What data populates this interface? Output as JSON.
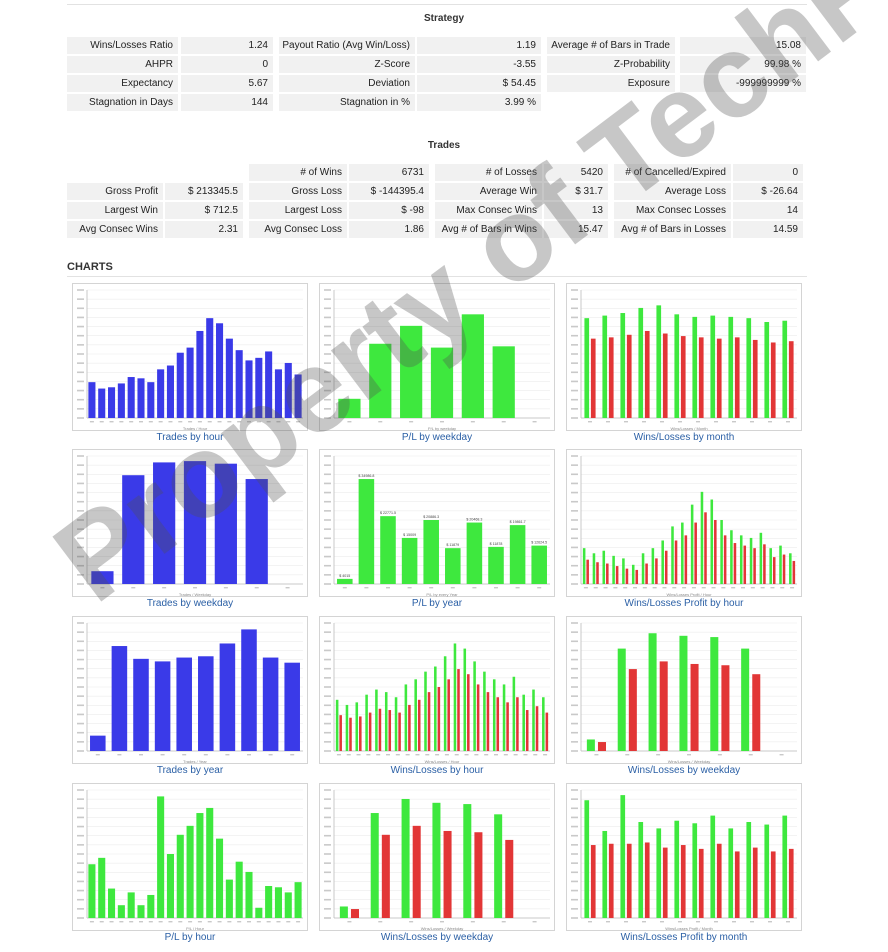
{
  "strategy": {
    "title": "Strategy",
    "rows": [
      [
        {
          "label": "Wins/Losses Ratio",
          "value": "1.24"
        },
        {
          "label": "Payout Ratio (Avg Win/Loss)",
          "value": "1.19"
        },
        {
          "label": "Average # of Bars in Trade",
          "value": "15.08"
        }
      ],
      [
        {
          "label": "AHPR",
          "value": "0"
        },
        {
          "label": "Z-Score",
          "value": "-3.55"
        },
        {
          "label": "Z-Probability",
          "value": "99.98 %"
        }
      ],
      [
        {
          "label": "Expectancy",
          "value": "5.67"
        },
        {
          "label": "Deviation",
          "value": "$ 54.45"
        },
        {
          "label": "Exposure",
          "value": "-999999999 %"
        }
      ],
      [
        {
          "label": "Stagnation in Days",
          "value": "144"
        },
        {
          "label": "Stagnation in %",
          "value": "3.99 %"
        }
      ]
    ]
  },
  "trades": {
    "title": "Trades",
    "first_row": [
      {
        "label": "# of Wins",
        "value": "6731"
      },
      {
        "label": "# of Losses",
        "value": "5420"
      },
      {
        "label": "# of Cancelled/Expired",
        "value": "0"
      }
    ],
    "rows": [
      [
        {
          "label": "Gross Profit",
          "value": "$ 213345.5"
        },
        {
          "label": "Gross Loss",
          "value": "$ -144395.4"
        },
        {
          "label": "Average Win",
          "value": "$ 31.7"
        },
        {
          "label": "Average Loss",
          "value": "$ -26.64"
        }
      ],
      [
        {
          "label": "Largest Win",
          "value": "$ 712.5"
        },
        {
          "label": "Largest Loss",
          "value": "$ -98"
        },
        {
          "label": "Max Consec Wins",
          "value": "13"
        },
        {
          "label": "Max Consec Losses",
          "value": "14"
        }
      ],
      [
        {
          "label": "Avg Consec Wins",
          "value": "2.31"
        },
        {
          "label": "Avg Consec Loss",
          "value": "1.86"
        },
        {
          "label": "Avg # of Bars in Wins",
          "value": "15.47"
        },
        {
          "label": "Avg # of Bars in Losses",
          "value": "14.59"
        }
      ]
    ]
  },
  "charts_heading": "CHARTS",
  "watermark": "Property of TechFXPRO.com",
  "colors": {
    "blue": "#3a3ae8",
    "green": "#3ee83e",
    "red": "#e23636",
    "caption": "#2a5fa5"
  },
  "chart_data": [
    {
      "type": "bar",
      "caption": "Trades by hour",
      "xlabel": "Trades / Hour",
      "color": "blue",
      "values": [
        28,
        23,
        24,
        27,
        32,
        31,
        28,
        38,
        41,
        51,
        55,
        68,
        78,
        74,
        62,
        53,
        45,
        47,
        52,
        38,
        43,
        34
      ]
    },
    {
      "type": "bar",
      "caption": "P/L by weekday",
      "xlabel": "P/L by weekday",
      "color": "green",
      "categories": [
        "Sun",
        "Mon",
        "Tue",
        "Wed",
        "Thu",
        "Fri",
        "Sat"
      ],
      "values": [
        15,
        58,
        72,
        55,
        81,
        56,
        0
      ]
    },
    {
      "type": "bar",
      "caption": "Wins/Losses by month",
      "xlabel": "Wins/Losses / Month",
      "series": [
        {
          "color": "green",
          "values": [
            78,
            80,
            82,
            86,
            88,
            81,
            79,
            80,
            79,
            78,
            75,
            76
          ]
        },
        {
          "color": "red",
          "values": [
            62,
            63,
            65,
            68,
            66,
            64,
            63,
            62,
            63,
            61,
            59,
            60
          ]
        }
      ]
    },
    {
      "type": "bar",
      "caption": "Trades by weekday",
      "xlabel": "Trades / Weekday",
      "color": "blue",
      "categories": [
        "Sun",
        "Mon",
        "Tue",
        "Wed",
        "Thu",
        "Fri",
        "Sat"
      ],
      "values": [
        10,
        85,
        95,
        96,
        94,
        82,
        0
      ]
    },
    {
      "type": "bar",
      "caption": "P/L by year",
      "xlabel": "P/L by every Year",
      "color": "green",
      "categories": [
        "2007",
        "2008",
        "2009",
        "2010",
        "2011",
        "2012",
        "2013",
        "2014",
        "2015",
        "2016"
      ],
      "values": [
        4,
        82,
        53,
        36,
        50,
        28,
        48,
        29,
        46,
        30
      ],
      "value_labels": [
        "$ 4015",
        "$ 34986.8",
        "$ 22771.5",
        "$ 15009",
        "$ 20886.3",
        "$ 11879",
        "$ 20468.3",
        "$ 11878",
        "$ 19861.7",
        "$ 12624.5"
      ]
    },
    {
      "type": "bar",
      "caption": "Wins/Losses Profit by hour",
      "xlabel": "Wins/Losses Profit / Hour",
      "series": [
        {
          "color": "green",
          "values": [
            28,
            24,
            26,
            22,
            20,
            15,
            24,
            28,
            34,
            45,
            48,
            62,
            72,
            66,
            50,
            42,
            38,
            36,
            40,
            28,
            30,
            24
          ]
        },
        {
          "color": "red",
          "values": [
            19,
            17,
            16,
            14,
            12,
            11,
            16,
            20,
            26,
            34,
            38,
            48,
            56,
            50,
            38,
            32,
            30,
            28,
            31,
            21,
            23,
            18
          ]
        }
      ]
    },
    {
      "type": "bar",
      "caption": "Trades by year",
      "xlabel": "Trades / Year",
      "color": "blue",
      "categories": [
        "2007",
        "2008",
        "2009",
        "2010",
        "2011",
        "2012",
        "2013",
        "2014",
        "2015",
        "2016"
      ],
      "values": [
        12,
        82,
        72,
        70,
        73,
        74,
        84,
        95,
        73,
        69
      ]
    },
    {
      "type": "bar",
      "caption": "Wins/Losses by hour",
      "xlabel": "Wins/Losses / Hour",
      "series": [
        {
          "color": "green",
          "values": [
            40,
            36,
            38,
            44,
            48,
            46,
            42,
            52,
            56,
            62,
            66,
            74,
            84,
            80,
            70,
            62,
            56,
            52,
            58,
            44,
            48,
            42
          ]
        },
        {
          "color": "red",
          "values": [
            28,
            26,
            27,
            30,
            33,
            32,
            30,
            36,
            40,
            46,
            50,
            56,
            64,
            60,
            52,
            46,
            42,
            38,
            42,
            32,
            35,
            30
          ]
        }
      ]
    },
    {
      "type": "bar",
      "caption": "Wins/Losses by weekday",
      "xlabel": "Wins/Losses / Weekday",
      "categories": [
        "Sun",
        "Mon",
        "Tue",
        "Wed",
        "Thu",
        "Fri",
        "Sat"
      ],
      "series": [
        {
          "color": "green",
          "values": [
            9,
            80,
            92,
            90,
            89,
            80,
            0
          ]
        },
        {
          "color": "red",
          "values": [
            7,
            64,
            70,
            68,
            67,
            60,
            0
          ]
        }
      ]
    },
    {
      "type": "bar",
      "caption": "P/L by hour",
      "xlabel": "P/L / Hour",
      "color": "green",
      "values": [
        42,
        47,
        23,
        10,
        20,
        10,
        18,
        95,
        50,
        65,
        72,
        82,
        86,
        62,
        30,
        44,
        36,
        8,
        25,
        24,
        20,
        28
      ]
    },
    {
      "type": "bar",
      "caption": "Wins/Losses by weekday",
      "xlabel": "Wins/Losses / Weekday",
      "categories": [
        "Sun",
        "Mon",
        "Tue",
        "Wed",
        "Thu",
        "Fri",
        "Sat"
      ],
      "series": [
        {
          "color": "green",
          "values": [
            9,
            82,
            93,
            90,
            89,
            81,
            0
          ]
        },
        {
          "color": "red",
          "values": [
            7,
            65,
            72,
            68,
            67,
            61,
            0
          ]
        }
      ]
    },
    {
      "type": "bar",
      "caption": "Wins/Losses Profit by month",
      "xlabel": "Wins/Losses Profit / Month",
      "series": [
        {
          "color": "green",
          "values": [
            92,
            68,
            96,
            75,
            70,
            76,
            74,
            80,
            70,
            75,
            73,
            80
          ]
        },
        {
          "color": "red",
          "values": [
            57,
            58,
            58,
            59,
            55,
            57,
            54,
            58,
            52,
            55,
            52,
            54
          ]
        }
      ]
    }
  ]
}
